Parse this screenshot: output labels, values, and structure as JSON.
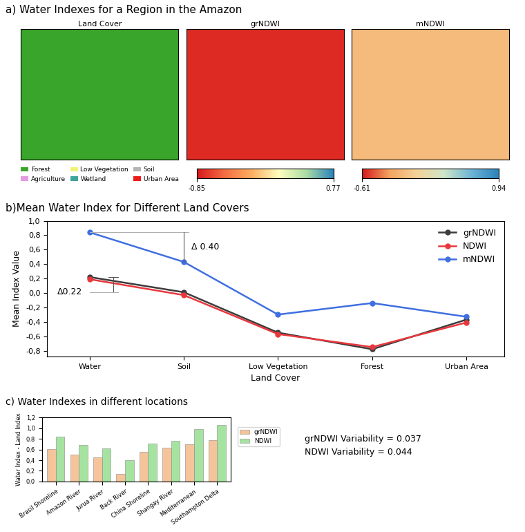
{
  "map_panel": {
    "title": "a) Water Indexes for a Region in the Amazon",
    "maps": [
      {
        "title": "Land Cover"
      },
      {
        "title": "grNDWI",
        "colorbar": {
          "range": [
            -0.85,
            0.77
          ],
          "ticks": [
            -0.85,
            0.77
          ]
        }
      },
      {
        "title": "mNDWI",
        "colorbar": {
          "range": [
            -0.61,
            0.94
          ],
          "ticks": [
            -0.61,
            0.94
          ]
        }
      }
    ],
    "land_cover_legend": [
      {
        "name": "Forest",
        "color": "#3aa52b"
      },
      {
        "name": "Low Vegetation",
        "color": "#f2f27a"
      },
      {
        "name": "Soil",
        "color": "#b4b4b4"
      },
      {
        "name": "Agriculture",
        "color": "#e59be0"
      },
      {
        "name": "Wetland",
        "color": "#3fa59a"
      },
      {
        "name": "Urban Area",
        "color": "#ee1b1b"
      }
    ]
  },
  "chart_data": [
    {
      "type": "line",
      "title": "b)Mean Water Index for Different Land Covers",
      "x_label": "Land Cover",
      "y_label": "Mean Index Value",
      "categories": [
        "Water",
        "Soil",
        "Low Vegetation",
        "Forest",
        "Urban Area"
      ],
      "marker": "o",
      "line_style": "solid",
      "legend": "upper right",
      "series": [
        {
          "name": "grNDWI",
          "color": "#3c3c3c",
          "values": [
            0.22,
            0.01,
            -0.55,
            -0.78,
            -0.37
          ]
        },
        {
          "name": "NDWI",
          "color": "#e8383d",
          "values": [
            0.19,
            -0.03,
            -0.57,
            -0.75,
            -0.41
          ]
        },
        {
          "name": "mNDWI",
          "color": "#3f6fe0",
          "values": [
            0.84,
            0.43,
            -0.3,
            -0.14,
            -0.33
          ]
        }
      ],
      "ylim": [
        -0.88,
        1.0
      ],
      "yticks": [
        {
          "value": -0.8,
          "label": "-0,8"
        },
        {
          "value": -0.6,
          "label": "-0,6"
        },
        {
          "value": -0.4,
          "label": "-0,4"
        },
        {
          "value": -0.2,
          "label": "-0,2"
        },
        {
          "value": 0.0,
          "label": "0,0"
        },
        {
          "value": 0.2,
          "label": "0,2"
        },
        {
          "value": 0.4,
          "label": "0,4"
        },
        {
          "value": 0.6,
          "label": "0,6"
        },
        {
          "value": 0.8,
          "label": "0,8"
        },
        {
          "value": 1.0,
          "label": "1,0"
        }
      ],
      "annotations": [
        {
          "text": "Δ 0.40",
          "series": "mNDWI",
          "from": "Water",
          "to": "Soil"
        },
        {
          "text": "Δ0.22",
          "series": "grNDWI",
          "from": "Water",
          "to": "Soil"
        }
      ]
    },
    {
      "type": "bar",
      "title": "c) Water Indexes in different locations",
      "y_label": "Water Index - Land Index",
      "categories": [
        "Brasil Shoreline",
        "Amazon River",
        "Jurua River",
        "Back River",
        "China Shoreline",
        "Shangay River",
        "Mediterranean",
        "Southampton Delta"
      ],
      "legend": "lower left",
      "series": [
        {
          "name": "grNDWI",
          "color": "#f6c49a",
          "values": [
            0.61,
            0.51,
            0.45,
            0.14,
            0.56,
            0.64,
            0.7,
            0.78
          ]
        },
        {
          "name": "NDWI",
          "color": "#a6e3a1",
          "values": [
            0.84,
            0.68,
            0.62,
            0.4,
            0.71,
            0.77,
            0.98,
            1.06
          ]
        }
      ],
      "ylim": [
        0,
        1.2
      ],
      "yticks": [
        {
          "value": 0,
          "label": "0,0"
        },
        {
          "value": 0.2,
          "label": "0,2"
        },
        {
          "value": 0.4,
          "label": "0,4"
        },
        {
          "value": 0.6,
          "label": "0,6"
        },
        {
          "value": 0.8,
          "label": "0,8"
        },
        {
          "value": 1.0,
          "label": "1,0"
        },
        {
          "value": 1.2,
          "label": "1,2"
        }
      ],
      "annotations": [
        "grNDWI Variability = 0.037",
        "NDWI Variability = 0.044"
      ]
    }
  ]
}
